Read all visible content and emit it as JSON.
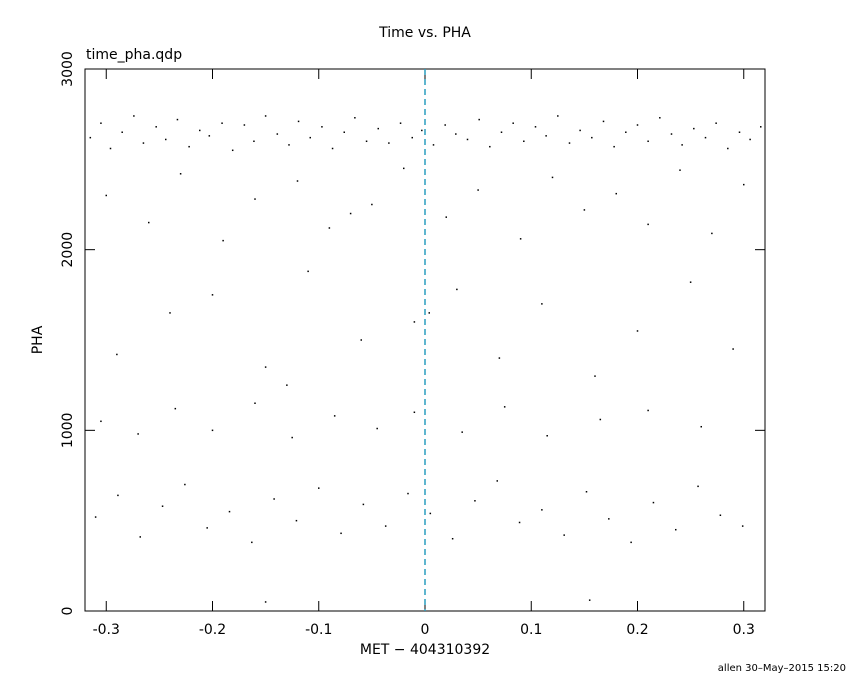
{
  "chart_data": {
    "type": "scatter",
    "title": "Time vs. PHA",
    "plot_label": "time_pha.qdp",
    "x_label": "MET − 404310392",
    "y_label": "PHA",
    "footer": "allen 30–May–2015 15:20",
    "xlim": [
      -0.32,
      0.32
    ],
    "ylim": [
      0,
      3000
    ],
    "xticks": [
      -0.3,
      -0.2,
      -0.1,
      0,
      0.1,
      0.2,
      0.3
    ],
    "yticks": [
      0,
      1000,
      2000,
      3000
    ],
    "color": "#000000",
    "vline": {
      "value": 0,
      "color": "#2a9dbf"
    },
    "x": [
      -0.315,
      -0.305,
      -0.296,
      -0.285,
      -0.274,
      -0.265,
      -0.253,
      -0.244,
      -0.233,
      -0.222,
      -0.212,
      -0.203,
      -0.191,
      -0.181,
      -0.17,
      -0.161,
      -0.15,
      -0.139,
      -0.128,
      -0.119,
      -0.108,
      -0.097,
      -0.087,
      -0.076,
      -0.066,
      -0.055,
      -0.044,
      -0.034,
      -0.023,
      -0.012,
      -0.003,
      0.008,
      0.019,
      0.029,
      0.04,
      0.051,
      0.061,
      0.072,
      0.083,
      0.093,
      0.104,
      0.114,
      0.125,
      0.136,
      0.146,
      0.157,
      0.168,
      0.178,
      0.189,
      0.2,
      0.21,
      0.221,
      0.232,
      0.242,
      0.253,
      0.264,
      0.274,
      0.285,
      0.296,
      0.306,
      0.316,
      -0.3,
      -0.26,
      -0.23,
      -0.19,
      -0.16,
      -0.12,
      -0.09,
      -0.05,
      -0.02,
      0.02,
      0.05,
      0.09,
      0.12,
      0.15,
      0.18,
      0.21,
      0.24,
      0.27,
      0.3,
      -0.07,
      -0.29,
      -0.24,
      -0.2,
      -0.15,
      -0.11,
      -0.06,
      -0.01,
      0.03,
      0.07,
      0.11,
      0.16,
      0.2,
      0.25,
      0.29,
      -0.13,
      -0.305,
      -0.27,
      -0.235,
      -0.2,
      -0.16,
      -0.125,
      -0.085,
      -0.045,
      -0.01,
      0.035,
      0.075,
      0.115,
      0.165,
      0.21,
      0.26,
      -0.31,
      -0.289,
      -0.268,
      -0.247,
      -0.226,
      -0.205,
      -0.184,
      -0.163,
      -0.142,
      -0.121,
      -0.1,
      -0.079,
      -0.058,
      -0.037,
      -0.016,
      0.005,
      0.026,
      0.047,
      0.068,
      0.089,
      0.11,
      0.131,
      0.152,
      0.173,
      0.194,
      0.215,
      0.236,
      0.257,
      0.278,
      0.299,
      0.155,
      -0.15,
      0.004
    ],
    "y": [
      2620,
      2700,
      2560,
      2650,
      2740,
      2590,
      2680,
      2610,
      2720,
      2570,
      2660,
      2630,
      2700,
      2550,
      2690,
      2600,
      2740,
      2640,
      2580,
      2710,
      2620,
      2680,
      2560,
      2650,
      2730,
      2600,
      2670,
      2590,
      2700,
      2620,
      2660,
      2580,
      2690,
      2640,
      2610,
      2720,
      2570,
      2650,
      2700,
      2600,
      2680,
      2630,
      2740,
      2590,
      2660,
      2620,
      2710,
      2570,
      2650,
      2690,
      2600,
      2730,
      2640,
      2580,
      2670,
      2620,
      2700,
      2560,
      2650,
      2610,
      2680,
      2300,
      2150,
      2420,
      2050,
      2280,
      2380,
      2120,
      2250,
      2450,
      2180,
      2330,
      2060,
      2400,
      2220,
      2310,
      2140,
      2440,
      2090,
      2360,
      2200,
      1420,
      1650,
      1750,
      1350,
      1880,
      1500,
      1600,
      1780,
      1400,
      1700,
      1300,
      1550,
      1820,
      1450,
      1250,
      1050,
      980,
      1120,
      1000,
      1150,
      960,
      1080,
      1010,
      1100,
      990,
      1130,
      970,
      1060,
      1110,
      1020,
      520,
      640,
      410,
      580,
      700,
      460,
      550,
      380,
      620,
      500,
      680,
      430,
      590,
      470,
      650,
      540,
      400,
      610,
      720,
      490,
      560,
      420,
      660,
      510,
      380,
      600,
      450,
      690,
      530,
      470,
      60,
      50,
      1650
    ]
  }
}
